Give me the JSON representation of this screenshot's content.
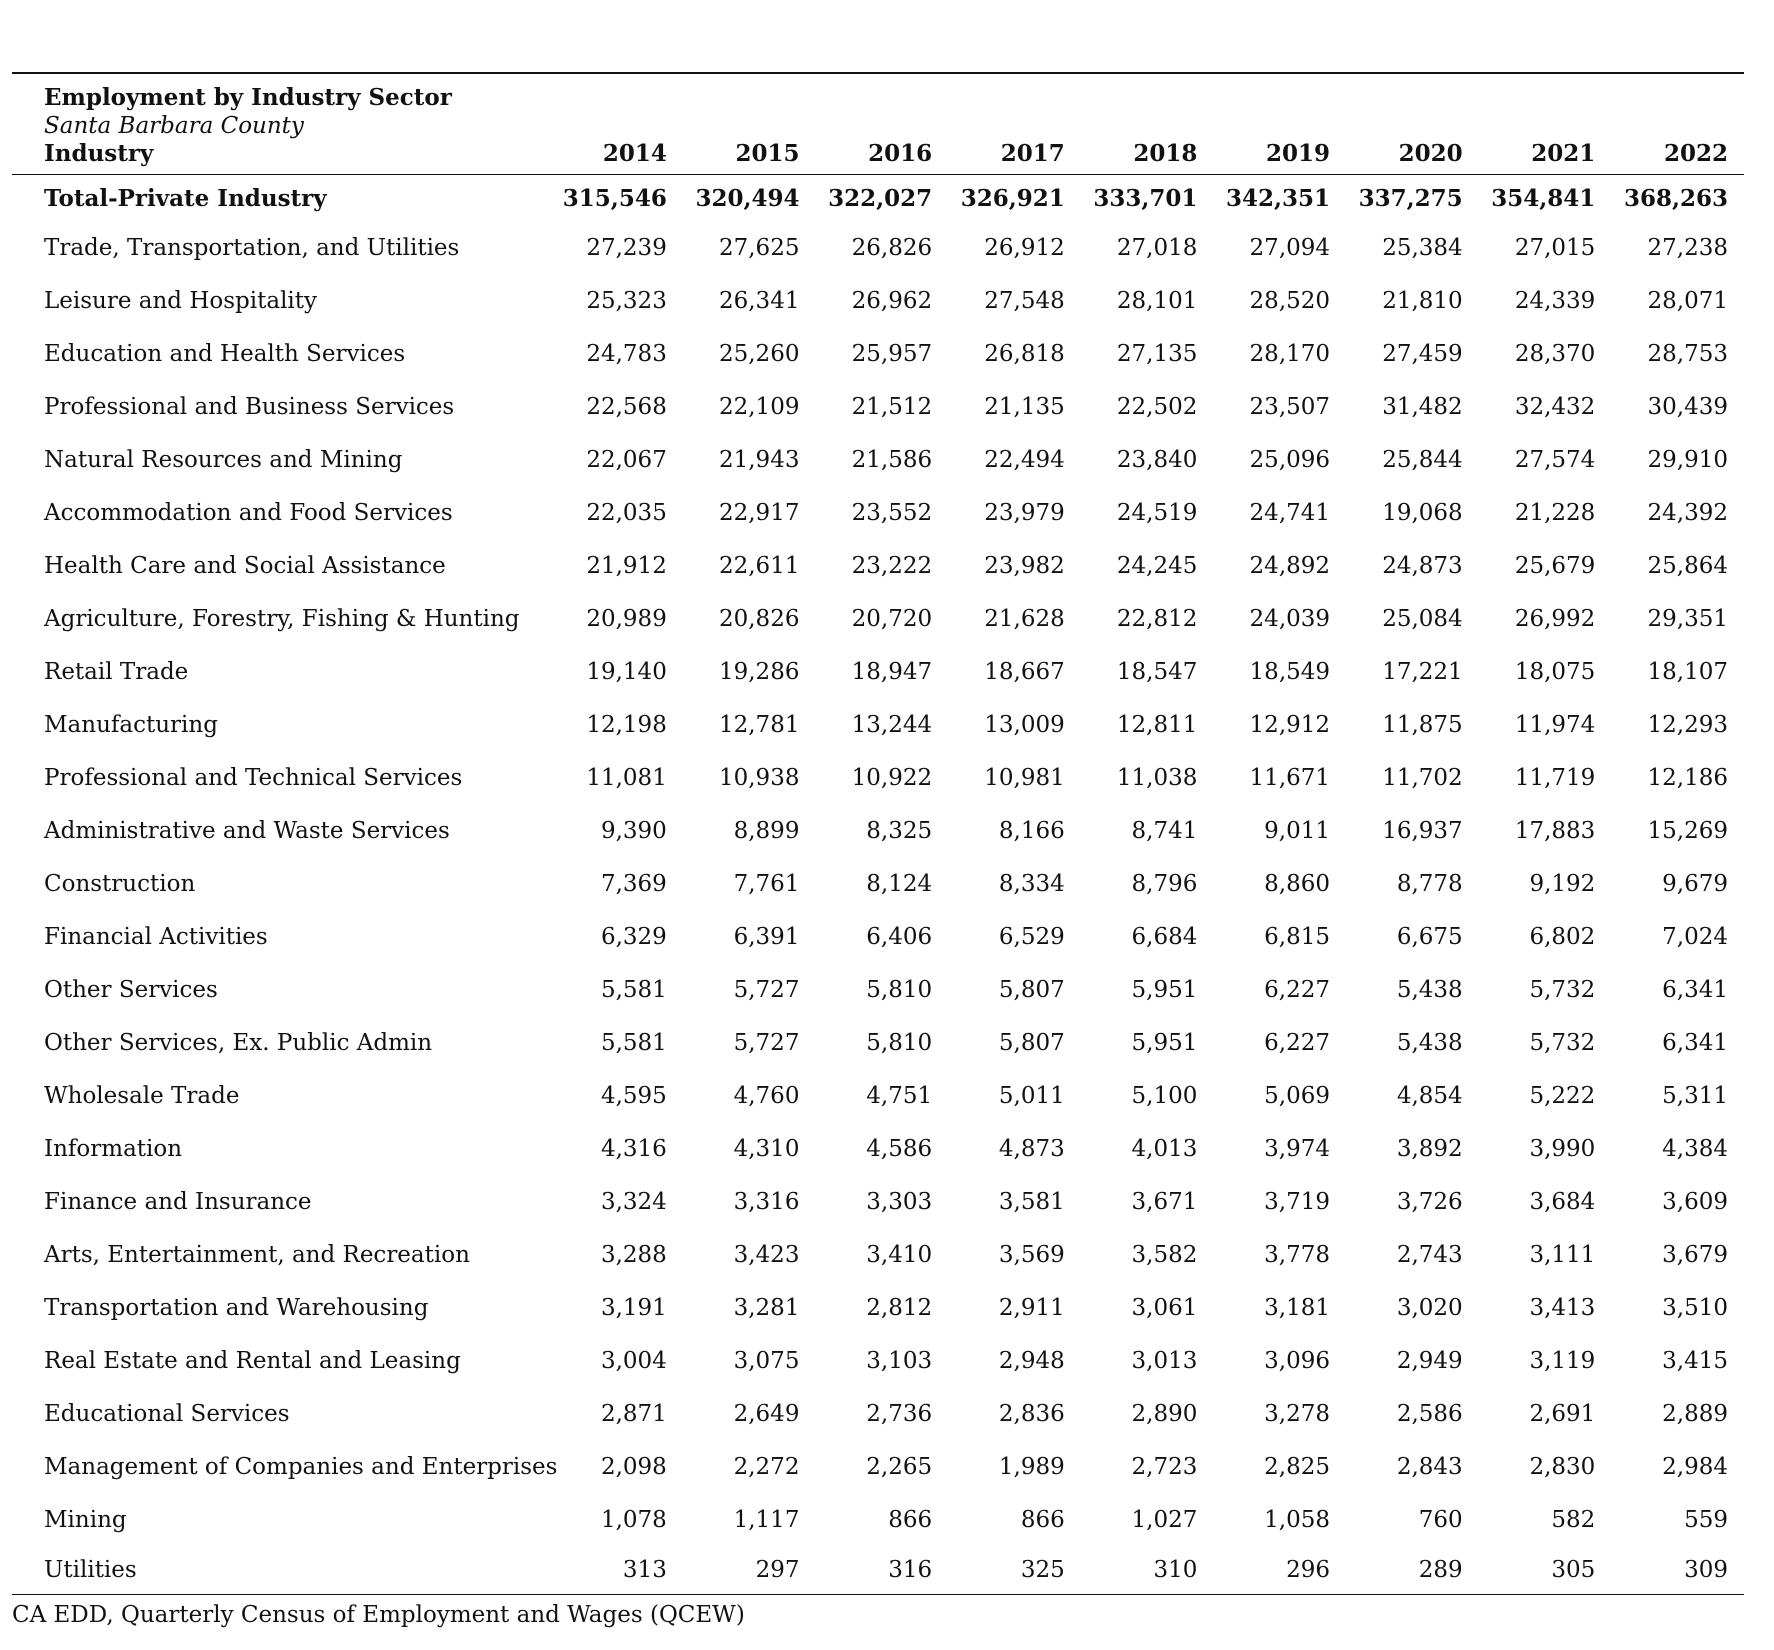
{
  "table": {
    "title": "Employment by Industry Sector",
    "subtitle": "Santa Barbara County",
    "industry_header": "Industry",
    "years": [
      "2014",
      "2015",
      "2016",
      "2017",
      "2018",
      "2019",
      "2020",
      "2021",
      "2022"
    ],
    "total": {
      "label": "Total-Private Industry",
      "values": [
        "315,546",
        "320,494",
        "322,027",
        "326,921",
        "333,701",
        "342,351",
        "337,275",
        "354,841",
        "368,263"
      ]
    },
    "rows": [
      {
        "label": "Trade, Transportation, and Utilities",
        "values": [
          "27,239",
          "27,625",
          "26,826",
          "26,912",
          "27,018",
          "27,094",
          "25,384",
          "27,015",
          "27,238"
        ]
      },
      {
        "label": "Leisure and Hospitality",
        "values": [
          "25,323",
          "26,341",
          "26,962",
          "27,548",
          "28,101",
          "28,520",
          "21,810",
          "24,339",
          "28,071"
        ]
      },
      {
        "label": "Education and Health Services",
        "values": [
          "24,783",
          "25,260",
          "25,957",
          "26,818",
          "27,135",
          "28,170",
          "27,459",
          "28,370",
          "28,753"
        ]
      },
      {
        "label": "Professional and Business Services",
        "values": [
          "22,568",
          "22,109",
          "21,512",
          "21,135",
          "22,502",
          "23,507",
          "31,482",
          "32,432",
          "30,439"
        ]
      },
      {
        "label": "Natural Resources and Mining",
        "values": [
          "22,067",
          "21,943",
          "21,586",
          "22,494",
          "23,840",
          "25,096",
          "25,844",
          "27,574",
          "29,910"
        ]
      },
      {
        "label": "Accommodation and Food Services",
        "values": [
          "22,035",
          "22,917",
          "23,552",
          "23,979",
          "24,519",
          "24,741",
          "19,068",
          "21,228",
          "24,392"
        ]
      },
      {
        "label": "Health Care and Social Assistance",
        "values": [
          "21,912",
          "22,611",
          "23,222",
          "23,982",
          "24,245",
          "24,892",
          "24,873",
          "25,679",
          "25,864"
        ]
      },
      {
        "label": "Agriculture, Forestry, Fishing & Hunting",
        "values": [
          "20,989",
          "20,826",
          "20,720",
          "21,628",
          "22,812",
          "24,039",
          "25,084",
          "26,992",
          "29,351"
        ]
      },
      {
        "label": "Retail Trade",
        "values": [
          "19,140",
          "19,286",
          "18,947",
          "18,667",
          "18,547",
          "18,549",
          "17,221",
          "18,075",
          "18,107"
        ]
      },
      {
        "label": "Manufacturing",
        "values": [
          "12,198",
          "12,781",
          "13,244",
          "13,009",
          "12,811",
          "12,912",
          "11,875",
          "11,974",
          "12,293"
        ]
      },
      {
        "label": "Professional and Technical Services",
        "values": [
          "11,081",
          "10,938",
          "10,922",
          "10,981",
          "11,038",
          "11,671",
          "11,702",
          "11,719",
          "12,186"
        ]
      },
      {
        "label": "Administrative and Waste Services",
        "values": [
          "9,390",
          "8,899",
          "8,325",
          "8,166",
          "8,741",
          "9,011",
          "16,937",
          "17,883",
          "15,269"
        ]
      },
      {
        "label": "Construction",
        "values": [
          "7,369",
          "7,761",
          "8,124",
          "8,334",
          "8,796",
          "8,860",
          "8,778",
          "9,192",
          "9,679"
        ]
      },
      {
        "label": "Financial Activities",
        "values": [
          "6,329",
          "6,391",
          "6,406",
          "6,529",
          "6,684",
          "6,815",
          "6,675",
          "6,802",
          "7,024"
        ]
      },
      {
        "label": "Other Services",
        "values": [
          "5,581",
          "5,727",
          "5,810",
          "5,807",
          "5,951",
          "6,227",
          "5,438",
          "5,732",
          "6,341"
        ]
      },
      {
        "label": "Other Services, Ex. Public Admin",
        "values": [
          "5,581",
          "5,727",
          "5,810",
          "5,807",
          "5,951",
          "6,227",
          "5,438",
          "5,732",
          "6,341"
        ]
      },
      {
        "label": "Wholesale Trade",
        "values": [
          "4,595",
          "4,760",
          "4,751",
          "5,011",
          "5,100",
          "5,069",
          "4,854",
          "5,222",
          "5,311"
        ]
      },
      {
        "label": "Information",
        "values": [
          "4,316",
          "4,310",
          "4,586",
          "4,873",
          "4,013",
          "3,974",
          "3,892",
          "3,990",
          "4,384"
        ]
      },
      {
        "label": "Finance and Insurance",
        "values": [
          "3,324",
          "3,316",
          "3,303",
          "3,581",
          "3,671",
          "3,719",
          "3,726",
          "3,684",
          "3,609"
        ]
      },
      {
        "label": "Arts, Entertainment, and Recreation",
        "values": [
          "3,288",
          "3,423",
          "3,410",
          "3,569",
          "3,582",
          "3,778",
          "2,743",
          "3,111",
          "3,679"
        ]
      },
      {
        "label": "Transportation and Warehousing",
        "values": [
          "3,191",
          "3,281",
          "2,812",
          "2,911",
          "3,061",
          "3,181",
          "3,020",
          "3,413",
          "3,510"
        ]
      },
      {
        "label": "Real Estate and Rental and Leasing",
        "values": [
          "3,004",
          "3,075",
          "3,103",
          "2,948",
          "3,013",
          "3,096",
          "2,949",
          "3,119",
          "3,415"
        ]
      },
      {
        "label": "Educational Services",
        "values": [
          "2,871",
          "2,649",
          "2,736",
          "2,836",
          "2,890",
          "3,278",
          "2,586",
          "2,691",
          "2,889"
        ]
      },
      {
        "label": "Management of Companies and Enterprises",
        "values": [
          "2,098",
          "2,272",
          "2,265",
          "1,989",
          "2,723",
          "2,825",
          "2,843",
          "2,830",
          "2,984"
        ]
      },
      {
        "label": "Mining",
        "values": [
          "1,078",
          "1,117",
          "866",
          "866",
          "1,027",
          "1,058",
          "760",
          "582",
          "559"
        ]
      },
      {
        "label": "Utilities",
        "values": [
          "313",
          "297",
          "316",
          "325",
          "310",
          "296",
          "289",
          "305",
          "309"
        ]
      }
    ],
    "source": "CA EDD, Quarterly Census of Employment and Wages (QCEW)"
  }
}
